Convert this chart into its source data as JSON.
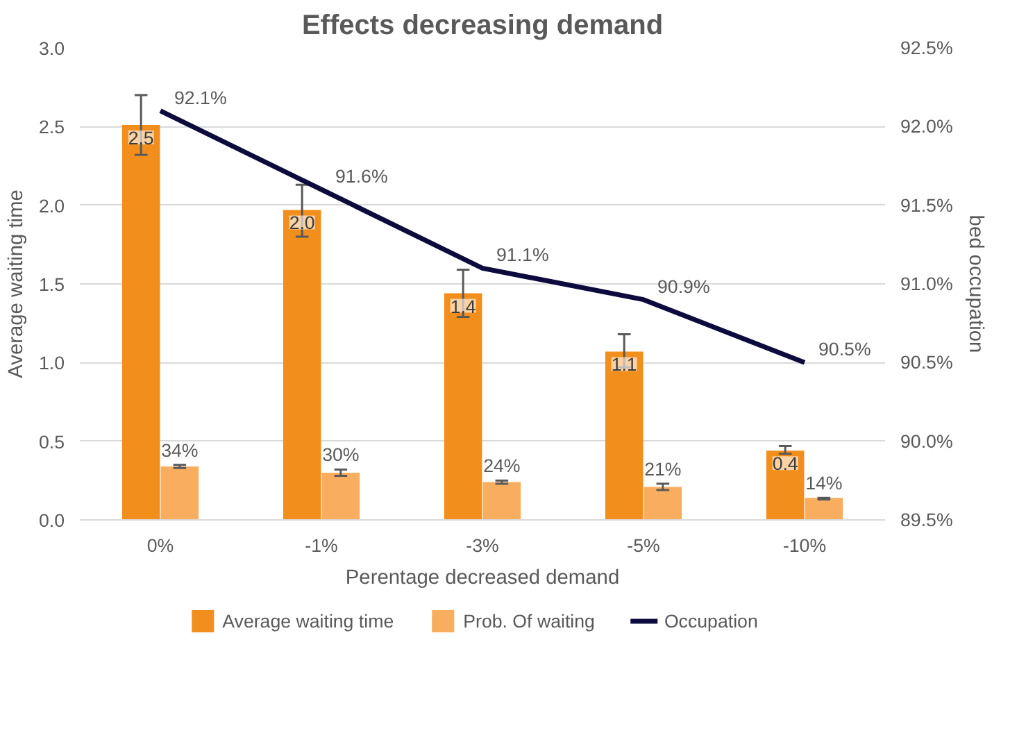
{
  "chart_data": {
    "type": "bar",
    "title": "Effects decreasing demand",
    "xlabel": "Perentage decreased demand",
    "ylabel": "Average waiting time",
    "y2label": "bed occupation",
    "categories": [
      "0%",
      "-1%",
      "-3%",
      "-5%",
      "-10%"
    ],
    "series": [
      {
        "name": "Average waiting time",
        "type": "bar",
        "color": "#f28e1c",
        "values": [
          2.51,
          1.97,
          1.44,
          1.07,
          0.44
        ],
        "errors": [
          [
            2.32,
            2.7
          ],
          [
            1.8,
            2.13
          ],
          [
            1.29,
            1.59
          ],
          [
            0.97,
            1.18
          ],
          [
            0.42,
            0.47
          ]
        ],
        "value_labels": [
          "2.5",
          "2.0",
          "1.4",
          "1.1",
          "0.4"
        ]
      },
      {
        "name": "Prob. Of waiting",
        "type": "bar",
        "color": "#f9ad5f",
        "values": [
          0.34,
          0.3,
          0.24,
          0.21,
          0.14
        ],
        "errors": [
          [
            0.33,
            0.35
          ],
          [
            0.28,
            0.32
          ],
          [
            0.23,
            0.25
          ],
          [
            0.19,
            0.23
          ],
          [
            0.13,
            0.14
          ]
        ],
        "value_labels": [
          "34%",
          "30%",
          "24%",
          "21%",
          "14%"
        ]
      },
      {
        "name": "Occupation",
        "type": "line",
        "axis": "y2",
        "color": "#0d0a3d",
        "values": [
          92.1,
          91.6,
          91.1,
          90.9,
          90.5
        ],
        "value_labels": [
          "92.1%",
          "91.6%",
          "91.1%",
          "90.9%",
          "90.5%"
        ]
      }
    ],
    "ylim": [
      0,
      3
    ],
    "yticks": [
      {
        "value": 0,
        "label": "0.0"
      },
      {
        "value": 0.5,
        "label": "0.5"
      },
      {
        "value": 1,
        "label": "1.0"
      },
      {
        "value": 1.5,
        "label": "1.5"
      },
      {
        "value": 2,
        "label": "2.0"
      },
      {
        "value": 2.5,
        "label": "2.5"
      },
      {
        "value": 3,
        "label": "3.0"
      }
    ],
    "y2lim": [
      89.5,
      92.5
    ],
    "y2ticks": [
      {
        "value": 89.5,
        "label": "89.5%"
      },
      {
        "value": 90,
        "label": "90.0%"
      },
      {
        "value": 90.5,
        "label": "90.5%"
      },
      {
        "value": 91,
        "label": "91.0%"
      },
      {
        "value": 91.5,
        "label": "91.5%"
      },
      {
        "value": 92,
        "label": "92.0%"
      },
      {
        "value": 92.5,
        "label": "92.5%"
      }
    ],
    "grid": "y",
    "legend": "bottom"
  }
}
